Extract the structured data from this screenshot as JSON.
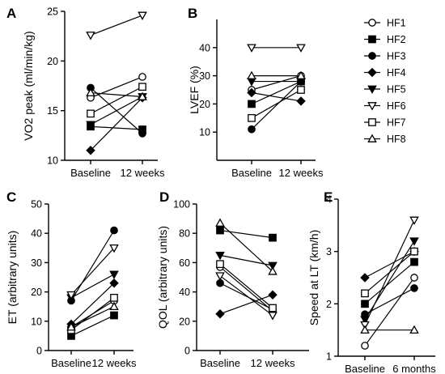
{
  "legend": {
    "entries": [
      "HF1",
      "HF2",
      "HF3",
      "HF4",
      "HF5",
      "HF6",
      "HF7",
      "HF8"
    ],
    "markers": [
      "circle-open",
      "square-filled",
      "circle-filled",
      "diamond-filled",
      "triangle-down-filled",
      "triangle-down-open",
      "square-open",
      "triangle-up-open"
    ]
  },
  "chart_data": [
    {
      "panel": "A",
      "type": "line",
      "ylabel": "VO2 peak (ml/min/kg)",
      "categories": [
        "Baseline",
        "12 weeks"
      ],
      "ylim": [
        10,
        25
      ],
      "yticks": [
        10,
        15,
        20,
        25
      ],
      "series": [
        {
          "name": "HF1",
          "values": [
            16.3,
            18.4
          ]
        },
        {
          "name": "HF2",
          "values": [
            13.4,
            13.1
          ]
        },
        {
          "name": "HF3",
          "values": [
            17.3,
            12.7
          ]
        },
        {
          "name": "HF4",
          "values": [
            11.0,
            16.3
          ]
        },
        {
          "name": "HF5",
          "values": [
            13.6,
            16.4
          ]
        },
        {
          "name": "HF6",
          "values": [
            22.6,
            24.6
          ]
        },
        {
          "name": "HF7",
          "values": [
            14.7,
            17.4
          ]
        },
        {
          "name": "HF8",
          "values": [
            16.8,
            16.4
          ]
        }
      ]
    },
    {
      "panel": "B",
      "type": "line",
      "ylabel": "LVEF (%)",
      "categories": [
        "Baseline",
        "12 weeks"
      ],
      "ylim": [
        0,
        50
      ],
      "yticks": [
        10,
        20,
        30,
        40
      ],
      "series": [
        {
          "name": "HF1",
          "values": [
            25,
            30
          ]
        },
        {
          "name": "HF2",
          "values": [
            20,
            28
          ]
        },
        {
          "name": "HF3",
          "values": [
            11,
            28
          ]
        },
        {
          "name": "HF4",
          "values": [
            24,
            21
          ]
        },
        {
          "name": "HF5",
          "values": [
            28,
            28
          ]
        },
        {
          "name": "HF6",
          "values": [
            40,
            40
          ]
        },
        {
          "name": "HF7",
          "values": [
            15,
            25
          ]
        },
        {
          "name": "HF8",
          "values": [
            30,
            30
          ]
        }
      ]
    },
    {
      "panel": "C",
      "type": "line",
      "ylabel": "ET (arbitrary units)",
      "categories": [
        "Baseline",
        "12 weeks"
      ],
      "ylim": [
        0,
        50
      ],
      "yticks": [
        0,
        10,
        20,
        30,
        40,
        50
      ],
      "series": [
        {
          "name": "HF1",
          "values": [
            8,
            17
          ]
        },
        {
          "name": "HF2",
          "values": [
            5,
            12
          ]
        },
        {
          "name": "HF3",
          "values": [
            17,
            41
          ]
        },
        {
          "name": "HF4",
          "values": [
            9,
            23
          ]
        },
        {
          "name": "HF5",
          "values": [
            18,
            26
          ]
        },
        {
          "name": "HF6",
          "values": [
            19,
            35
          ]
        },
        {
          "name": "HF7",
          "values": [
            7,
            18
          ]
        },
        {
          "name": "HF8",
          "values": [
            8,
            15
          ]
        }
      ]
    },
    {
      "panel": "D",
      "type": "line",
      "ylabel": "QOL (arbitrary units)",
      "categories": [
        "Baseline",
        "12 weeks"
      ],
      "ylim": [
        0,
        100
      ],
      "yticks": [
        0,
        20,
        40,
        60,
        80,
        100
      ],
      "series": [
        {
          "name": "HF1",
          "values": [
            57,
            27
          ]
        },
        {
          "name": "HF2",
          "values": [
            82,
            77
          ]
        },
        {
          "name": "HF3",
          "values": [
            46,
            28
          ]
        },
        {
          "name": "HF4",
          "values": [
            25,
            38
          ]
        },
        {
          "name": "HF5",
          "values": [
            65,
            58
          ]
        },
        {
          "name": "HF6",
          "values": [
            51,
            24
          ]
        },
        {
          "name": "HF7",
          "values": [
            59,
            29
          ]
        },
        {
          "name": "HF8",
          "values": [
            87,
            54
          ]
        }
      ]
    },
    {
      "panel": "E",
      "type": "line",
      "ylabel": "Speed at LT (km/h)",
      "categories": [
        "Baseline",
        "6 months"
      ],
      "ylim": [
        1,
        4
      ],
      "yticks": [
        1,
        2,
        3,
        4
      ],
      "series": [
        {
          "name": "HF1",
          "values": [
            1.2,
            2.5
          ]
        },
        {
          "name": "HF2",
          "values": [
            2.0,
            2.8
          ]
        },
        {
          "name": "HF3",
          "values": [
            1.8,
            2.3
          ]
        },
        {
          "name": "HF4",
          "values": [
            2.5,
            3.0
          ]
        },
        {
          "name": "HF5",
          "values": [
            1.7,
            3.2
          ]
        },
        {
          "name": "HF6",
          "values": [
            1.6,
            3.6
          ]
        },
        {
          "name": "HF7",
          "values": [
            2.2,
            3.0
          ]
        },
        {
          "name": "HF8",
          "values": [
            1.5,
            1.5
          ]
        }
      ]
    }
  ]
}
